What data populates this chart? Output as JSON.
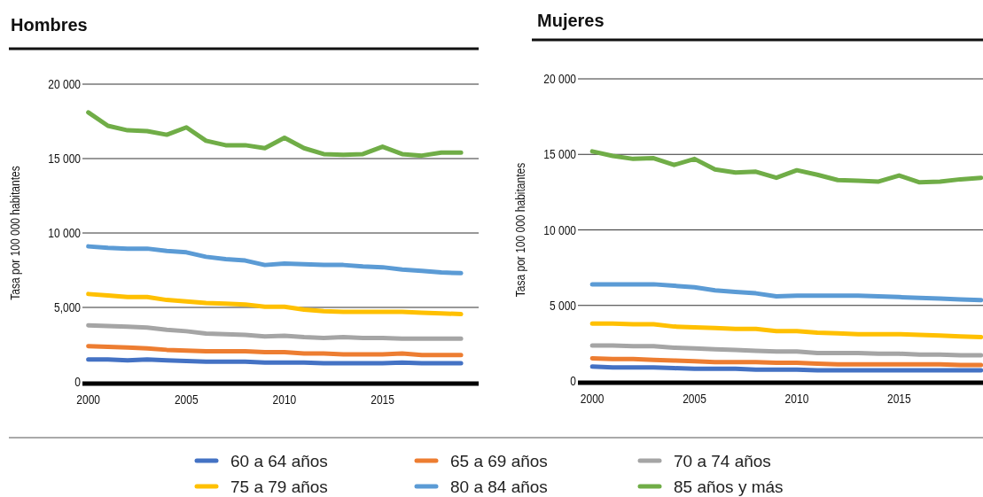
{
  "chart_data": [
    {
      "type": "line",
      "title": "Hombres",
      "ylabel": "Tasa por 100 000 habitantes",
      "x": [
        2000,
        2001,
        2002,
        2003,
        2004,
        2005,
        2006,
        2007,
        2008,
        2009,
        2010,
        2011,
        2012,
        2013,
        2014,
        2015,
        2016,
        2017,
        2018,
        2019
      ],
      "xlim": [
        1999.7,
        2019.9
      ],
      "xticks": [
        2000,
        2005,
        2010,
        2015
      ],
      "ylim": [
        0,
        20000
      ],
      "yticks": [
        {
          "value": 0,
          "label": "0"
        },
        {
          "value": 5000,
          "label": "5,000"
        },
        {
          "value": 10000,
          "label": "10 000"
        },
        {
          "value": 15000,
          "label": "15 000"
        },
        {
          "value": 20000,
          "label": "20 000"
        }
      ],
      "grid": "y",
      "legend": "bottom",
      "marker": "none",
      "line_style": "solid",
      "series": [
        {
          "name": "60 a 64 años",
          "color": "#4472c4",
          "values": [
            1500,
            1500,
            1450,
            1500,
            1450,
            1400,
            1350,
            1350,
            1350,
            1300,
            1300,
            1300,
            1250,
            1250,
            1250,
            1250,
            1300,
            1250,
            1250,
            1250
          ]
        },
        {
          "name": "65 a 69 años",
          "color": "#ed7d31",
          "values": [
            2400,
            2350,
            2300,
            2250,
            2150,
            2100,
            2050,
            2050,
            2050,
            2000,
            2000,
            1900,
            1900,
            1850,
            1850,
            1850,
            1900,
            1800,
            1800,
            1800
          ]
        },
        {
          "name": "70 a 74 años",
          "color": "#a5a5a5",
          "values": [
            3800,
            3750,
            3700,
            3650,
            3500,
            3400,
            3250,
            3200,
            3150,
            3050,
            3100,
            3000,
            2950,
            3000,
            2950,
            2950,
            2900,
            2900,
            2900,
            2900
          ]
        },
        {
          "name": "75 a 79 años",
          "color": "#ffc000",
          "values": [
            5900,
            5800,
            5700,
            5700,
            5500,
            5400,
            5300,
            5250,
            5200,
            5050,
            5050,
            4850,
            4750,
            4700,
            4700,
            4700,
            4700,
            4650,
            4600,
            4550
          ]
        },
        {
          "name": "80 a 84 años",
          "color": "#5b9bd5",
          "values": [
            9100,
            9000,
            8950,
            8950,
            8800,
            8700,
            8400,
            8250,
            8150,
            7850,
            7950,
            7900,
            7850,
            7850,
            7750,
            7700,
            7550,
            7450,
            7350,
            7300
          ]
        },
        {
          "name": "85 años y más",
          "color": "#70ad47",
          "values": [
            18100,
            17200,
            16900,
            16850,
            16600,
            17100,
            16200,
            15900,
            15900,
            15700,
            16400,
            15700,
            15300,
            15250,
            15300,
            15800,
            15300,
            15200,
            15400,
            15400
          ]
        }
      ]
    },
    {
      "type": "line",
      "title": "Mujeres",
      "ylabel": "Tasa por 100 000 habitantes",
      "x": [
        2000,
        2001,
        2002,
        2003,
        2004,
        2005,
        2006,
        2007,
        2008,
        2009,
        2010,
        2011,
        2012,
        2013,
        2014,
        2015,
        2016,
        2017,
        2018,
        2019
      ],
      "xlim": [
        1999.3,
        2019.1
      ],
      "xticks": [
        2000,
        2005,
        2010,
        2015
      ],
      "ylim": [
        0,
        20000
      ],
      "yticks": [
        {
          "value": 0,
          "label": "0"
        },
        {
          "value": 5000,
          "label": "5 000"
        },
        {
          "value": 10000,
          "label": "10 000"
        },
        {
          "value": 15000,
          "label": "15 000"
        },
        {
          "value": 20000,
          "label": "20 000"
        }
      ],
      "grid": "y",
      "marker": "none",
      "line_style": "solid",
      "series": [
        {
          "color": "#4472c4",
          "values": [
            950,
            900,
            900,
            900,
            850,
            800,
            800,
            800,
            750,
            750,
            750,
            700,
            700,
            700,
            700,
            700,
            700,
            700,
            700,
            700
          ]
        },
        {
          "color": "#ed7d31",
          "values": [
            1500,
            1450,
            1450,
            1400,
            1350,
            1300,
            1250,
            1250,
            1250,
            1200,
            1200,
            1150,
            1100,
            1100,
            1100,
            1100,
            1100,
            1100,
            1050,
            1050
          ]
        },
        {
          "color": "#a5a5a5",
          "values": [
            2350,
            2350,
            2300,
            2300,
            2200,
            2150,
            2100,
            2050,
            2000,
            1950,
            1950,
            1850,
            1850,
            1850,
            1800,
            1800,
            1750,
            1750,
            1700,
            1700
          ]
        },
        {
          "color": "#ffc000",
          "values": [
            3800,
            3800,
            3750,
            3750,
            3600,
            3550,
            3500,
            3450,
            3450,
            3300,
            3300,
            3200,
            3150,
            3100,
            3100,
            3100,
            3050,
            3000,
            2950,
            2900
          ]
        },
        {
          "color": "#5b9bd5",
          "values": [
            6400,
            6400,
            6400,
            6400,
            6300,
            6200,
            6000,
            5900,
            5800,
            5600,
            5650,
            5650,
            5650,
            5650,
            5600,
            5550,
            5500,
            5450,
            5400,
            5350
          ]
        },
        {
          "color": "#70ad47",
          "values": [
            15200,
            14900,
            14700,
            14750,
            14300,
            14700,
            14000,
            13800,
            13850,
            13450,
            13950,
            13650,
            13300,
            13250,
            13200,
            13600,
            13150,
            13200,
            13350,
            13450
          ]
        }
      ]
    }
  ]
}
